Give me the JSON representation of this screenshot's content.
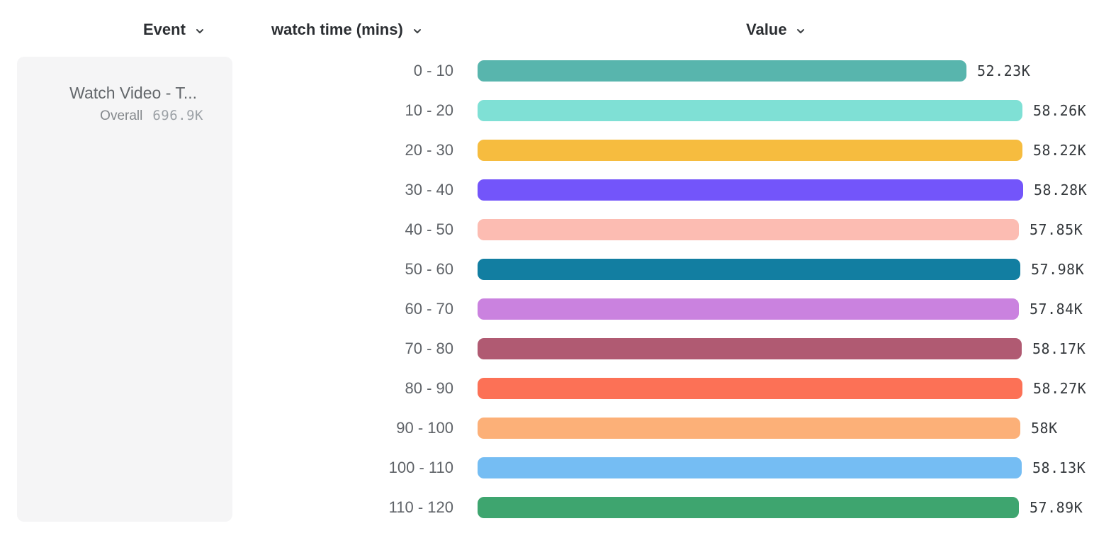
{
  "columns": {
    "event": {
      "label": "Event"
    },
    "breakdown": {
      "label": "watch time (mins)"
    },
    "value": {
      "label": "Value"
    }
  },
  "event_card": {
    "title": "Watch Video - T...",
    "overall_label": "Overall",
    "overall_value": "696.9K"
  },
  "chart_data": {
    "type": "bar",
    "orientation": "horizontal",
    "title": "",
    "xlabel": "Value",
    "ylabel": "watch time (mins)",
    "xlim": [
      0,
      58280
    ],
    "grid": false,
    "legend_position": "none",
    "categories": [
      "0 - 10",
      "10 - 20",
      "20 - 30",
      "30 - 40",
      "40 - 50",
      "50 - 60",
      "60 - 70",
      "70 - 80",
      "80 - 90",
      "90 - 100",
      "100 - 110",
      "110 - 120"
    ],
    "values": [
      52230,
      58260,
      58220,
      58280,
      57850,
      57980,
      57840,
      58170,
      58270,
      58000,
      58130,
      57890
    ],
    "value_labels": [
      "52.23K",
      "58.26K",
      "58.22K",
      "58.28K",
      "57.85K",
      "57.98K",
      "57.84K",
      "58.17K",
      "58.27K",
      "58K",
      "58.13K",
      "57.89K"
    ],
    "bar_colors": [
      "#58B5AD",
      "#7FE0D5",
      "#F6BC3F",
      "#7355FA",
      "#FCBCB2",
      "#127EA1",
      "#CA82DF",
      "#B05A72",
      "#FC7156",
      "#FCB078",
      "#75BDF3",
      "#3EA56F"
    ]
  },
  "icons": {
    "dropdown": "chevron-down"
  },
  "colors": {
    "page_bg": "#FFFFFF",
    "card_bg": "#F5F5F6",
    "header_text": "#2B2E32",
    "category_text": "#5F6368",
    "value_text": "#35393D",
    "card_title_text": "#63676B",
    "overall_label_text": "#84888C",
    "overall_value_text": "#9CA1A6"
  }
}
